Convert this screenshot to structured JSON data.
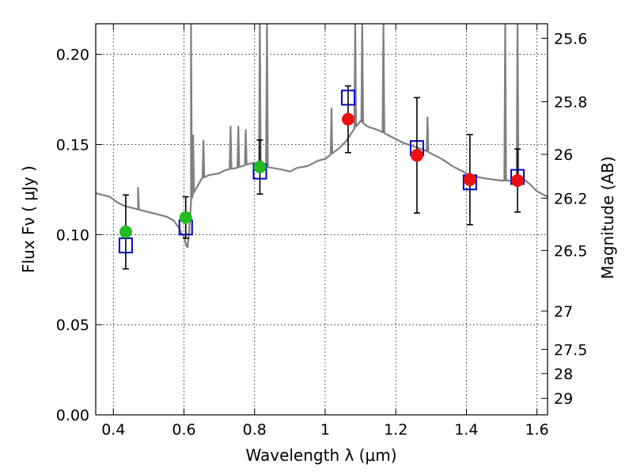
{
  "chart_data": {
    "type": "scatter",
    "xlabel": "Wavelength  λ (μm)",
    "ylabel": "Flux  Fν  ( μJy )",
    "ylabel_right": "Magnitude (AB)",
    "xlim": [
      0.35,
      1.63
    ],
    "ylim": [
      0.0,
      0.217
    ],
    "x_ticks": [
      {
        "value": 0.4,
        "label": "0.4"
      },
      {
        "value": 0.6,
        "label": "0.6"
      },
      {
        "value": 0.8,
        "label": "0.8"
      },
      {
        "value": 1.0,
        "label": "1"
      },
      {
        "value": 1.2,
        "label": "1.2"
      },
      {
        "value": 1.4,
        "label": "1.4"
      },
      {
        "value": 1.6,
        "label": "1.6"
      }
    ],
    "y_ticks": [
      {
        "value": 0.0,
        "label": "0.00"
      },
      {
        "value": 0.05,
        "label": "0.05"
      },
      {
        "value": 0.1,
        "label": "0.10"
      },
      {
        "value": 0.15,
        "label": "0.15"
      },
      {
        "value": 0.2,
        "label": "0.20"
      }
    ],
    "y_right_ticks": [
      {
        "label": "25.6"
      },
      {
        "label": "25.8"
      },
      {
        "label": "26"
      },
      {
        "label": "26.2"
      },
      {
        "label": "26.5"
      },
      {
        "label": "27"
      },
      {
        "label": "27.5"
      },
      {
        "label": "28"
      },
      {
        "label": "29"
      }
    ],
    "grid": true,
    "colors": {
      "template": "#808080",
      "optical_points": "#22bb22",
      "nir_points": "#ee1111",
      "model_boxes": "#0000cc",
      "error_bars": "#000000"
    },
    "series": [
      {
        "style": "line",
        "x": [
          0.35,
          0.37,
          0.39,
          0.41,
          0.43,
          0.45,
          0.47,
          0.49,
          0.51,
          0.53,
          0.55,
          0.57,
          0.585,
          0.595,
          0.6,
          0.603,
          0.606,
          0.61,
          0.614,
          0.618,
          0.62,
          0.625,
          0.63,
          0.65,
          0.67,
          0.7,
          0.72,
          0.75,
          0.78,
          0.8,
          0.82,
          0.85,
          0.88,
          0.9,
          0.92,
          0.95,
          0.98,
          1.0,
          1.02,
          1.04,
          1.06,
          1.08,
          1.1,
          1.12,
          1.15,
          1.18,
          1.2,
          1.22,
          1.25,
          1.28,
          1.3,
          1.33,
          1.36,
          1.4,
          1.43,
          1.46,
          1.5,
          1.53,
          1.56,
          1.58,
          1.6,
          1.63
        ],
        "y": [
          0.123,
          0.122,
          0.121,
          0.118,
          0.116,
          0.115,
          0.114,
          0.113,
          0.112,
          0.111,
          0.11,
          0.108,
          0.104,
          0.1,
          0.099,
          0.097,
          0.094,
          0.093,
          0.1,
          0.112,
          0.118,
          0.122,
          0.124,
          0.131,
          0.133,
          0.134,
          0.136,
          0.137,
          0.139,
          0.14,
          0.138,
          0.137,
          0.136,
          0.135,
          0.137,
          0.138,
          0.141,
          0.142,
          0.145,
          0.148,
          0.152,
          0.158,
          0.163,
          0.16,
          0.158,
          0.155,
          0.153,
          0.151,
          0.149,
          0.147,
          0.145,
          0.142,
          0.138,
          0.134,
          0.132,
          0.131,
          0.13,
          0.13,
          0.131,
          0.128,
          0.124,
          0.121
        ]
      },
      {
        "style": "model-box",
        "x": [
          0.435,
          0.605,
          0.815,
          1.065,
          1.26,
          1.41,
          1.545
        ],
        "y": [
          0.094,
          0.104,
          0.135,
          0.176,
          0.148,
          0.129,
          0.132
        ]
      },
      {
        "style": "optical-point",
        "x": [
          0.435,
          0.605,
          0.815
        ],
        "y": [
          0.1015,
          0.1095,
          0.1375
        ],
        "err": [
          0.0205,
          0.0115,
          0.015
        ]
      },
      {
        "style": "nir-point",
        "x": [
          1.065,
          1.26,
          1.41,
          1.545
        ],
        "y": [
          0.164,
          0.144,
          0.1305,
          0.13
        ],
        "err": [
          0.0185,
          0.032,
          0.025,
          0.0175
        ]
      }
    ],
    "spikes": [
      {
        "x": 0.47,
        "y": 0.126
      },
      {
        "x": 0.62,
        "y": 0.217
      },
      {
        "x": 0.626,
        "y": 0.155
      },
      {
        "x": 0.655,
        "y": 0.152
      },
      {
        "x": 0.732,
        "y": 0.16
      },
      {
        "x": 0.754,
        "y": 0.16
      },
      {
        "x": 0.775,
        "y": 0.158
      },
      {
        "x": 0.815,
        "y": 0.217
      },
      {
        "x": 0.835,
        "y": 0.217
      },
      {
        "x": 1.018,
        "y": 0.17
      },
      {
        "x": 1.085,
        "y": 0.217
      },
      {
        "x": 1.105,
        "y": 0.217
      },
      {
        "x": 1.165,
        "y": 0.217
      },
      {
        "x": 1.29,
        "y": 0.165
      },
      {
        "x": 1.51,
        "y": 0.217
      },
      {
        "x": 1.545,
        "y": 0.217
      }
    ]
  }
}
